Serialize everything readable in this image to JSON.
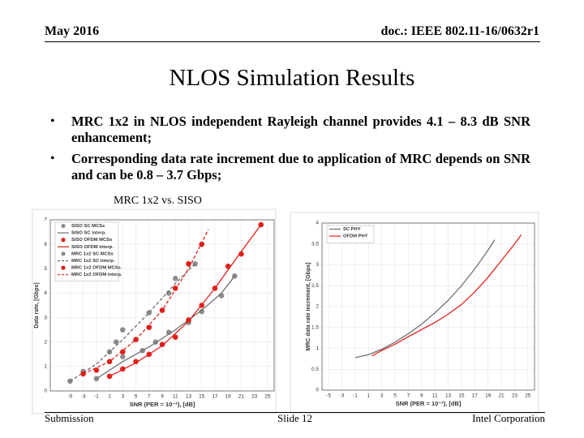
{
  "header": {
    "date": "May 2016",
    "doc": "doc.: IEEE 802.11-16/0632r1"
  },
  "title": "NLOS Simulation Results",
  "bullets": [
    "MRC 1x2 in NLOS independent Rayleigh channel provides 4.1 – 8.3 dB SNR enhancement;",
    "Corresponding data rate increment due to application of MRC depends on SNR and can be 0.8 – 3.7 Gbps;"
  ],
  "figure_caption": "MRC 1x2 vs. SISO",
  "chart_data": [
    {
      "type": "line",
      "xlabel": "SNR (PER = 10⁻²), [dB]",
      "ylabel": "Data rate, [Gbps]",
      "xlim": [
        -8,
        26
      ],
      "ylim": [
        0,
        7
      ],
      "xticks": [
        -5,
        -3,
        -1,
        1,
        3,
        5,
        7,
        9,
        11,
        13,
        15,
        17,
        19,
        21,
        23,
        25
      ],
      "yticks": [
        0,
        1,
        2,
        3,
        4,
        5,
        6,
        7
      ],
      "grid": true,
      "legend": "upper left",
      "series": [
        {
          "name": "SISO SC MCSs",
          "color": "#8c8c8c",
          "marker": true,
          "x": [
            -1,
            3,
            6,
            8,
            10,
            13,
            15,
            18,
            20
          ],
          "values": [
            0.5,
            1.4,
            1.65,
            2.0,
            2.4,
            2.8,
            3.25,
            3.9,
            4.7
          ]
        },
        {
          "name": "SISO SC interp.",
          "color": "#6e6e6e",
          "line": "solid",
          "x": [
            -1,
            3,
            7,
            11,
            15,
            18,
            20
          ],
          "values": [
            0.5,
            1.2,
            1.8,
            2.5,
            3.3,
            4.0,
            4.7
          ]
        },
        {
          "name": "SISO OFDM MCSs",
          "color": "#e0201b",
          "marker": true,
          "x": [
            1,
            3,
            5,
            7,
            9,
            11,
            13,
            15,
            17,
            19,
            21,
            24
          ],
          "values": [
            0.6,
            0.9,
            1.2,
            1.5,
            1.9,
            2.2,
            2.9,
            3.5,
            4.2,
            5.1,
            5.6,
            6.8
          ]
        },
        {
          "name": "SISO OFDM interp.",
          "color": "#e0201b",
          "line": "solid",
          "x": [
            1,
            5,
            9,
            13,
            17,
            21,
            24
          ],
          "values": [
            0.6,
            1.15,
            1.85,
            2.85,
            4.2,
            5.7,
            6.8
          ]
        },
        {
          "name": "MRC 1x2 SC MCSs",
          "color": "#8c8c8c",
          "marker": true,
          "x": [
            -5,
            -3,
            1,
            2,
            3,
            7,
            10,
            11,
            14
          ],
          "values": [
            0.4,
            0.8,
            1.6,
            2.0,
            2.5,
            3.2,
            4.0,
            4.6,
            5.2
          ]
        },
        {
          "name": "MRC 1x2 SC interp.",
          "color": "#6e6e6e",
          "line": "dashed",
          "x": [
            -5,
            -1,
            3,
            7,
            11,
            14
          ],
          "values": [
            0.4,
            1.1,
            2.1,
            3.2,
            4.4,
            5.2
          ]
        },
        {
          "name": "MRC 1x2 OFDM MCSs",
          "color": "#e0201b",
          "marker": true,
          "x": [
            -3,
            -1,
            1,
            3,
            5,
            7,
            9,
            11,
            13,
            15
          ],
          "values": [
            0.7,
            0.85,
            1.2,
            1.6,
            2.1,
            2.6,
            3.3,
            4.2,
            5.2,
            6.0
          ]
        },
        {
          "name": "MRC 1x2 OFDM interp.",
          "color": "#e0201b",
          "line": "dashed",
          "x": [
            -3,
            1,
            5,
            9,
            13,
            16
          ],
          "values": [
            0.7,
            1.2,
            2.1,
            3.3,
            5.0,
            6.6
          ]
        }
      ]
    },
    {
      "type": "line",
      "xlabel": "SNR (PER = 10⁻²), [dB]",
      "ylabel": "MRC data rate increment, [Gbps]",
      "xlim": [
        -6,
        26
      ],
      "ylim": [
        0,
        4
      ],
      "xticks": [
        -5,
        -3,
        -1,
        1,
        3,
        5,
        7,
        9,
        11,
        13,
        15,
        17,
        19,
        21,
        23,
        25
      ],
      "yticks": [
        0,
        0.5,
        1,
        1.5,
        2,
        2.5,
        3,
        3.5,
        4
      ],
      "grid": true,
      "legend": "upper left",
      "series": [
        {
          "name": "SC PHY",
          "color": "#707070",
          "line": "solid",
          "x": [
            -1,
            1,
            3,
            5,
            7,
            9,
            11,
            13,
            15,
            17,
            19,
            20
          ],
          "values": [
            0.78,
            0.85,
            0.98,
            1.15,
            1.35,
            1.58,
            1.85,
            2.15,
            2.5,
            2.9,
            3.35,
            3.6
          ]
        },
        {
          "name": "OFDM PHY",
          "color": "#e0201b",
          "line": "solid",
          "x": [
            1.5,
            3,
            5,
            7,
            9,
            11,
            13,
            15,
            17,
            19,
            21,
            23,
            24
          ],
          "values": [
            0.82,
            0.95,
            1.1,
            1.28,
            1.45,
            1.62,
            1.82,
            2.05,
            2.35,
            2.7,
            3.1,
            3.5,
            3.72
          ]
        }
      ]
    }
  ],
  "footer": {
    "left": "Submission",
    "center": "Slide 12",
    "right": "Intel Corporation"
  }
}
